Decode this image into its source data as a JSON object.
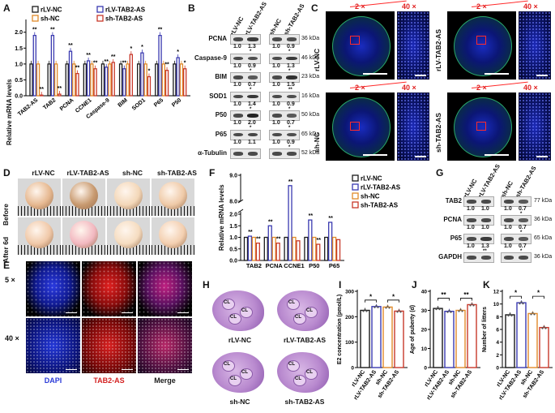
{
  "panels": {
    "A": {
      "letter": "A",
      "ylabel": "Relative mRNA levels",
      "categories": [
        "TAB2-AS",
        "TAB2",
        "PCNA",
        "CCNE1",
        "Caspase-9",
        "BIM",
        "SOD1",
        "P65",
        "P50"
      ],
      "legend": [
        "rLV-NC",
        "rLV-TAB2-AS",
        "sh-NC",
        "sh-TAB2-AS"
      ],
      "colors": [
        "#1a1a1a",
        "#3a3ab0",
        "#e08a2a",
        "#c8382a"
      ],
      "yticks": [
        "0.0",
        "0.5",
        "1.0",
        "1.5",
        "2.0"
      ],
      "sig": [
        "**",
        "**",
        "**",
        "**",
        "**",
        "**",
        "**",
        "**",
        "**",
        "**",
        "**",
        "*",
        "*",
        "*",
        "**",
        "**",
        "*",
        "*",
        "*",
        "*",
        "*"
      ]
    },
    "B": {
      "letter": "B",
      "lanes_left": [
        "rLV-NC",
        "rLV-TAB2-AS"
      ],
      "lanes_right": [
        "sh-NC",
        "sh-TAB2-AS"
      ],
      "rows": [
        {
          "name": "PCNA",
          "kda": "36 kDa",
          "l": [
            "1.0",
            "1.3"
          ],
          "r": [
            "1.0",
            "0.9"
          ],
          "ls": "*",
          "rs": "*"
        },
        {
          "name": "Caspase-9",
          "kda": "46 kDa",
          "l": [
            "1.0",
            "0.9"
          ],
          "r": [
            "1.0",
            "1.3"
          ],
          "ls": "*",
          "rs": "*"
        },
        {
          "name": "BIM",
          "kda": "23 kDa",
          "l": [
            "1.0",
            "0.7"
          ],
          "r": [
            "1.0",
            "1.5"
          ],
          "ls": "*",
          "rs": "**"
        },
        {
          "name": "SOD1",
          "kda": "16 kDa",
          "l": [
            "1.0",
            "1.4"
          ],
          "r": [
            "1.0",
            "0.9"
          ],
          "ls": "*",
          "rs": "*"
        },
        {
          "name": "P50",
          "kda": "50 kDa",
          "l": [
            "1.0",
            "2.0"
          ],
          "r": [
            "1.0",
            "0.7"
          ],
          "ls": "*",
          "rs": "*"
        },
        {
          "name": "P65",
          "kda": "65 kDa",
          "l": [
            "1.0",
            "1.1"
          ],
          "r": [
            "1.0",
            "0.9"
          ],
          "ls": "",
          "rs": "*"
        },
        {
          "name": "α-Tubulin",
          "kda": "52 kDa",
          "l": [
            "",
            ""
          ],
          "r": [
            "",
            ""
          ],
          "ls": "",
          "rs": ""
        }
      ]
    },
    "C": {
      "letter": "C",
      "mag_low": "2 ×",
      "mag_high": "40 ×",
      "rows": [
        "rLV-NC",
        "rLV-TAB2-AS",
        "sh-NC",
        "sh-TAB2-AS"
      ]
    },
    "D": {
      "letter": "D",
      "cols": [
        "rLV-NC",
        "rLV-TAB2-AS",
        "sh-NC",
        "sh-TAB2-AS"
      ],
      "rows": [
        "Before",
        "After 6d"
      ]
    },
    "E": {
      "letter": "E",
      "rows": [
        "5 ×",
        "40 ×"
      ],
      "cols": [
        "DAPI",
        "TAB2-AS",
        "Merge"
      ],
      "colors": [
        "#2a3ad8",
        "#d42020",
        "#1a1a1a"
      ]
    },
    "F": {
      "letter": "F",
      "ylabel": "Relative mRNA levels",
      "categories": [
        "TAB2",
        "PCNA",
        "CCNE1",
        "P50",
        "P65"
      ],
      "legend": [
        "rLV-NC",
        "rLV-TAB2-AS",
        "sh-NC",
        "sh-TAB2-AS"
      ],
      "yticks": [
        "0.0",
        "0.5",
        "1.0",
        "1.5",
        "2.0",
        "8.0",
        "9.0"
      ],
      "sig": [
        "**",
        "**",
        "**",
        "**",
        "**",
        "**",
        "**"
      ]
    },
    "G": {
      "letter": "G",
      "lanes_left": [
        "rLV-NC",
        "rLV-TAB2-AS"
      ],
      "lanes_right": [
        "sh-NC",
        "sh-TAB2-AS"
      ],
      "rows": [
        {
          "name": "TAB2",
          "kda": "77 kDa",
          "l": [
            "1.0",
            "1.0"
          ],
          "r": [
            "1.0",
            "0.7"
          ],
          "ls": "",
          "rs": "*"
        },
        {
          "name": "PCNA",
          "kda": "36 kDa",
          "l": [
            "1.0",
            "1.0"
          ],
          "r": [
            "1.0",
            "0.7"
          ],
          "ls": "",
          "rs": "*"
        },
        {
          "name": "P65",
          "kda": "65 kDa",
          "l": [
            "1.0",
            "1.3"
          ],
          "r": [
            "1.0",
            "0.7"
          ],
          "ls": "**",
          "rs": "*"
        },
        {
          "name": "GAPDH",
          "kda": "36 kDa",
          "l": [
            "",
            ""
          ],
          "r": [
            "",
            ""
          ],
          "ls": "",
          "rs": ""
        }
      ]
    },
    "H": {
      "letter": "H",
      "cols": [
        "rLV-NC",
        "rLV-TAB2-AS",
        "sh-NC",
        "sh-TAB2-AS"
      ],
      "cl": "CL"
    },
    "I": {
      "letter": "I",
      "ylabel": "E2 concentration (pmol/L)",
      "yticks": [
        "0",
        "100",
        "200",
        "300"
      ],
      "groups": [
        "rLV-NC",
        "rLV-TAB2-AS",
        "sh-NC",
        "sh-TAB2-AS"
      ],
      "sig": [
        "*",
        "*"
      ]
    },
    "J": {
      "letter": "J",
      "ylabel": "Age of puberty (d)",
      "yticks": [
        "0",
        "10",
        "20",
        "30",
        "40"
      ],
      "groups": [
        "rLV-NC",
        "rLV-TAB2-AS",
        "sh-NC",
        "sh-TAB2-AS"
      ],
      "sig": [
        "**",
        "**"
      ]
    },
    "K": {
      "letter": "K",
      "ylabel": "Number of litters",
      "yticks": [
        "0",
        "2",
        "4",
        "6",
        "8",
        "10",
        "12"
      ],
      "groups": [
        "rLV-NC",
        "rLV-TAB2-AS",
        "sh-NC",
        "sh-TAB2-AS"
      ],
      "sig": [
        "*",
        "*"
      ]
    }
  },
  "chart_data": [
    {
      "type": "bar",
      "categories": [
        "TAB2-AS",
        "TAB2",
        "PCNA",
        "CCNE1",
        "Caspase-9",
        "BIM",
        "SOD1",
        "P65",
        "P50"
      ],
      "series": [
        {
          "name": "rLV-NC",
          "values": [
            1.0,
            1.0,
            1.0,
            1.0,
            1.0,
            1.0,
            1.0,
            1.0,
            1.0
          ]
        },
        {
          "name": "rLV-TAB2-AS",
          "values": [
            1.9,
            1.9,
            1.4,
            1.1,
            0.9,
            0.85,
            1.35,
            1.9,
            1.2
          ]
        },
        {
          "name": "sh-NC",
          "values": [
            1.0,
            1.0,
            1.0,
            1.0,
            1.0,
            1.0,
            1.0,
            1.0,
            1.0
          ]
        },
        {
          "name": "sh-TAB2-AS",
          "values": [
            0.02,
            0.05,
            0.7,
            0.85,
            1.05,
            1.3,
            0.6,
            0.8,
            0.85
          ]
        }
      ],
      "ylabel": "Relative mRNA levels",
      "ylim": [
        0,
        2.3
      ]
    },
    {
      "type": "bar",
      "categories": [
        "TAB2",
        "PCNA",
        "CCNE1",
        "P50",
        "P65"
      ],
      "series": [
        {
          "name": "rLV-NC",
          "values": [
            1.0,
            1.0,
            1.0,
            1.0,
            1.0
          ]
        },
        {
          "name": "rLV-TAB2-AS",
          "values": [
            1.05,
            1.5,
            8.6,
            1.75,
            1.65
          ]
        },
        {
          "name": "sh-NC",
          "values": [
            1.0,
            1.0,
            1.0,
            1.0,
            1.0
          ]
        },
        {
          "name": "sh-TAB2-AS",
          "values": [
            0.75,
            0.75,
            0.85,
            0.7,
            0.9
          ]
        }
      ],
      "ylabel": "Relative mRNA levels",
      "ylim": [
        0,
        9.0
      ]
    },
    {
      "type": "bar",
      "categories": [
        "rLV-NC",
        "rLV-TAB2-AS",
        "sh-NC",
        "sh-TAB2-AS"
      ],
      "values": [
        225,
        240,
        238,
        222
      ],
      "ylabel": "E2 concentration (pmol/L)",
      "ylim": [
        0,
        300
      ]
    },
    {
      "type": "bar",
      "categories": [
        "rLV-NC",
        "rLV-TAB2-AS",
        "sh-NC",
        "sh-TAB2-AS"
      ],
      "values": [
        31,
        29.5,
        30,
        33
      ],
      "ylabel": "Age of puberty (d)",
      "ylim": [
        0,
        40
      ]
    },
    {
      "type": "bar",
      "categories": [
        "rLV-NC",
        "rLV-TAB2-AS",
        "sh-NC",
        "sh-TAB2-AS"
      ],
      "values": [
        8.3,
        10.2,
        8.5,
        6.3
      ],
      "ylabel": "Number of litters",
      "ylim": [
        0,
        12
      ]
    }
  ]
}
